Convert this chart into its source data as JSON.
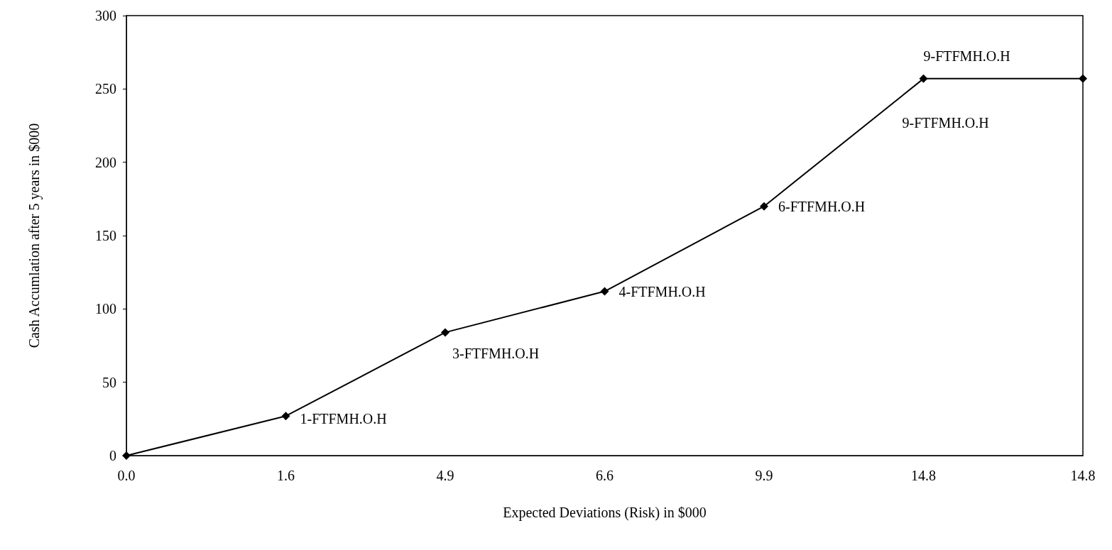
{
  "chart_data": {
    "type": "line",
    "xlabel": "Expected Deviations (Risk) in $000",
    "ylabel": "Cash Accumlation after 5 years in $000",
    "categories": [
      "0.0",
      "1.6",
      "4.9",
      "6.6",
      "9.9",
      "14.8",
      "14.8"
    ],
    "values": [
      0,
      27,
      84,
      112,
      170,
      257,
      257
    ],
    "annotations": [
      {
        "text": "1-FTFMH.O.H",
        "x": "1.6",
        "y": 27
      },
      {
        "text": "3-FTFMH.O.H",
        "x": "4.9",
        "y": 84
      },
      {
        "text": "4-FTFMH.O.H",
        "x": "6.6",
        "y": 112
      },
      {
        "text": "6-FTFMH.O.H",
        "x": "9.9",
        "y": 170
      },
      {
        "text": "9-FTFMH.O.H",
        "x": "14.8",
        "y": 257
      },
      {
        "text": "9-FTFMH.O.H",
        "x": "14.8",
        "y": 257
      }
    ],
    "color": "#000000",
    "ylim": [
      0,
      300
    ],
    "yticks": [
      0,
      50,
      100,
      150,
      200,
      250,
      300
    ],
    "grid": false,
    "marker": "diamond",
    "line_style": "solid"
  }
}
